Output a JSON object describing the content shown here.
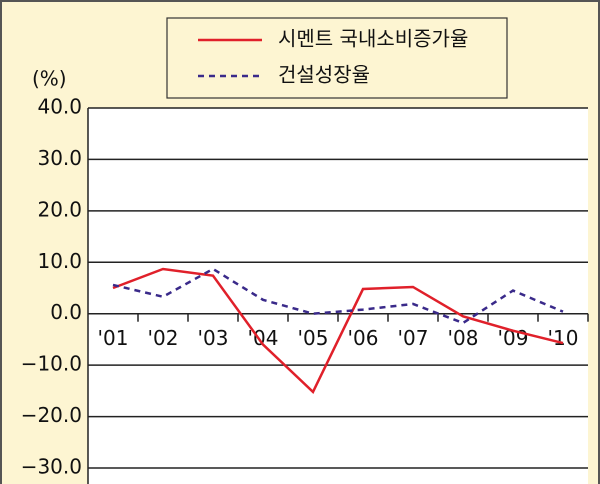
{
  "chart_data": {
    "type": "line",
    "y_label": "(%)",
    "categories": [
      "'01",
      "'02",
      "'03",
      "'04",
      "'05",
      "'06",
      "'07",
      "'08",
      "'09",
      "'10"
    ],
    "series": [
      {
        "name": "시멘트 국내소비증가율",
        "color": "#e0202a",
        "dash": false,
        "values": [
          5.0,
          8.7,
          7.4,
          -6.0,
          -15.2,
          4.8,
          5.2,
          -0.5,
          -3.3,
          -5.7
        ]
      },
      {
        "name": "건설성장율",
        "color": "#3a2a8a",
        "dash": true,
        "values": [
          5.6,
          3.3,
          8.7,
          2.7,
          0.0,
          0.8,
          1.9,
          -1.8,
          4.5,
          0.4
        ]
      }
    ],
    "ylim": [
      -30,
      40
    ],
    "yticks": [
      {
        "value": -30,
        "label": "−30.0"
      },
      {
        "value": -20,
        "label": "−20.0"
      },
      {
        "value": -10,
        "label": "−10.0"
      },
      {
        "value": 0,
        "label": "0.0"
      },
      {
        "value": 10,
        "label": "10.0"
      },
      {
        "value": 20,
        "label": "20.0"
      },
      {
        "value": 30,
        "label": "30.0"
      },
      {
        "value": 40,
        "label": "40.0"
      }
    ],
    "grid": true
  }
}
